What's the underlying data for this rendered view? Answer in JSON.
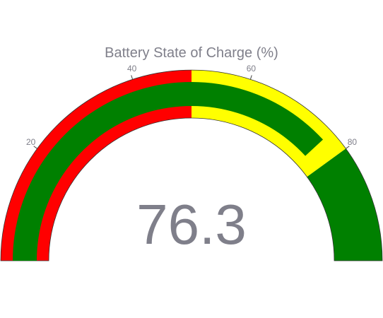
{
  "chart_data": {
    "type": "gauge",
    "title": "Battery State of Charge (%)",
    "value": 76.3,
    "value_label": "76.3",
    "range": [
      0,
      100
    ],
    "ticks": [
      {
        "value": 20,
        "label": "20"
      },
      {
        "value": 40,
        "label": "40"
      },
      {
        "value": 60,
        "label": "60"
      },
      {
        "value": 80,
        "label": "80"
      }
    ],
    "steps": [
      {
        "range": [
          0,
          50
        ],
        "color": "#ff0000"
      },
      {
        "range": [
          50,
          80
        ],
        "color": "#ffff00"
      },
      {
        "range": [
          80,
          100
        ],
        "color": "#008000"
      }
    ],
    "bar_color": "#008000"
  }
}
